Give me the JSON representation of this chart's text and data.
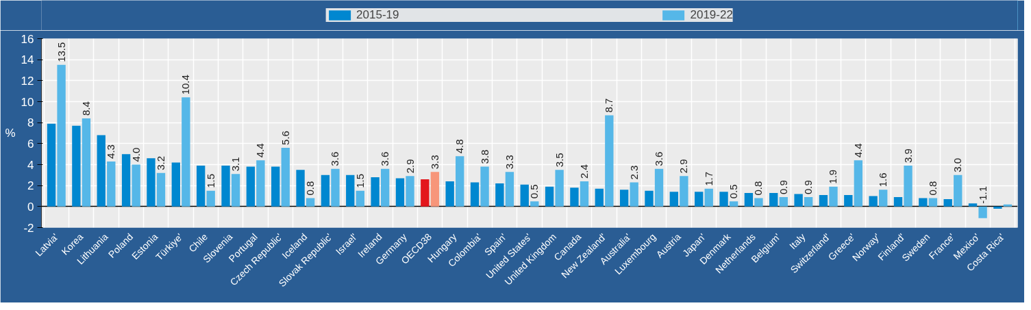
{
  "chart_data": {
    "type": "bar",
    "ylabel": "%",
    "categories": [
      "Latvia'",
      "Korea",
      "Lithuania",
      "Poland",
      "Estonia",
      "Türkiye'",
      "Chile",
      "Slovenia",
      "Portugal",
      "Czech Republic'",
      "Iceland",
      "Slovak Republic'",
      "Israel'",
      "Ireland",
      "Germany",
      "OECD38",
      "Hungary",
      "Colombia'",
      "Spain'",
      "United States'",
      "United Kingdom",
      "Canada",
      "New Zealand'",
      "Australia'",
      "Luxembourg",
      "Austria",
      "Japan'",
      "Denmark",
      "Netherlands",
      "Belgium'",
      "Italy",
      "Switzerland'",
      "Greece'",
      "Norway'",
      "Finland'",
      "Sweden",
      "France'",
      "Mexico'",
      "Costa Rica'"
    ],
    "series": [
      {
        "name": "2015-19",
        "color": "#0087d0",
        "colors": [
          "#0087d0",
          "#0087d0",
          "#0087d0",
          "#0087d0",
          "#0087d0",
          "#0087d0",
          "#0087d0",
          "#0087d0",
          "#0087d0",
          "#0087d0",
          "#0087d0",
          "#0087d0",
          "#0087d0",
          "#0087d0",
          "#0087d0",
          "#e3161c",
          "#0087d0",
          "#0087d0",
          "#0087d0",
          "#0087d0",
          "#0087d0",
          "#0087d0",
          "#0087d0",
          "#0087d0",
          "#0087d0",
          "#0087d0",
          "#0087d0",
          "#0087d0",
          "#0087d0",
          "#0087d0",
          "#0087d0",
          "#0087d0",
          "#0087d0",
          "#0087d0",
          "#0087d0",
          "#0087d0",
          "#0087d0",
          "#0087d0",
          "#0087d0"
        ],
        "values": [
          7.9,
          7.7,
          6.8,
          5.0,
          4.6,
          4.2,
          3.9,
          3.9,
          3.8,
          3.8,
          3.5,
          3.0,
          3.0,
          2.8,
          2.7,
          2.6,
          2.4,
          2.3,
          2.2,
          2.1,
          1.9,
          1.8,
          1.7,
          1.6,
          1.5,
          1.4,
          1.4,
          1.4,
          1.3,
          1.3,
          1.2,
          1.1,
          1.1,
          1.0,
          0.9,
          0.8,
          0.7,
          0.3,
          -0.2
        ]
      },
      {
        "name": "2019-22",
        "color": "#55b7e8",
        "colors": [
          "#55b7e8",
          "#55b7e8",
          "#55b7e8",
          "#55b7e8",
          "#55b7e8",
          "#55b7e8",
          "#55b7e8",
          "#55b7e8",
          "#55b7e8",
          "#55b7e8",
          "#55b7e8",
          "#55b7e8",
          "#55b7e8",
          "#55b7e8",
          "#55b7e8",
          "#f7967a",
          "#55b7e8",
          "#55b7e8",
          "#55b7e8",
          "#55b7e8",
          "#55b7e8",
          "#55b7e8",
          "#55b7e8",
          "#55b7e8",
          "#55b7e8",
          "#55b7e8",
          "#55b7e8",
          "#55b7e8",
          "#55b7e8",
          "#55b7e8",
          "#55b7e8",
          "#55b7e8",
          "#55b7e8",
          "#55b7e8",
          "#55b7e8",
          "#55b7e8",
          "#55b7e8",
          "#55b7e8",
          "#55b7e8"
        ],
        "values": [
          13.5,
          8.4,
          4.3,
          4.0,
          3.2,
          10.4,
          1.5,
          3.1,
          4.4,
          5.6,
          0.8,
          3.6,
          1.5,
          3.6,
          2.9,
          3.3,
          4.8,
          3.8,
          3.3,
          0.5,
          3.5,
          2.4,
          8.7,
          2.3,
          3.6,
          2.9,
          1.7,
          0.5,
          0.8,
          0.9,
          0.9,
          1.9,
          4.4,
          1.6,
          3.9,
          0.8,
          3.0,
          -1.1,
          0.2
        ],
        "value_labels": [
          "13.5",
          "8.4",
          "4.3",
          "4.0",
          "3.2",
          "10.4",
          "1.5",
          "3.1",
          "4.4",
          "5.6",
          "0.8",
          "3.6",
          "1.5",
          "3.6",
          "2.9",
          "3.3",
          "4.8",
          "3.8",
          "3.3",
          "0.5",
          "3.5",
          "2.4",
          "8.7",
          "2.3",
          "3.6",
          "2.9",
          "1.7",
          "0.5",
          "0.8",
          "0.9",
          "0.9",
          "1.9",
          "4.4",
          "1.6",
          "3.9",
          "0.8",
          "3.0",
          "-1.1",
          null
        ]
      }
    ],
    "ylim": [
      -2,
      16
    ],
    "yticks": [
      -2,
      0,
      2,
      4,
      6,
      8,
      10,
      12,
      14,
      16
    ],
    "grid": true,
    "legend": "top"
  }
}
